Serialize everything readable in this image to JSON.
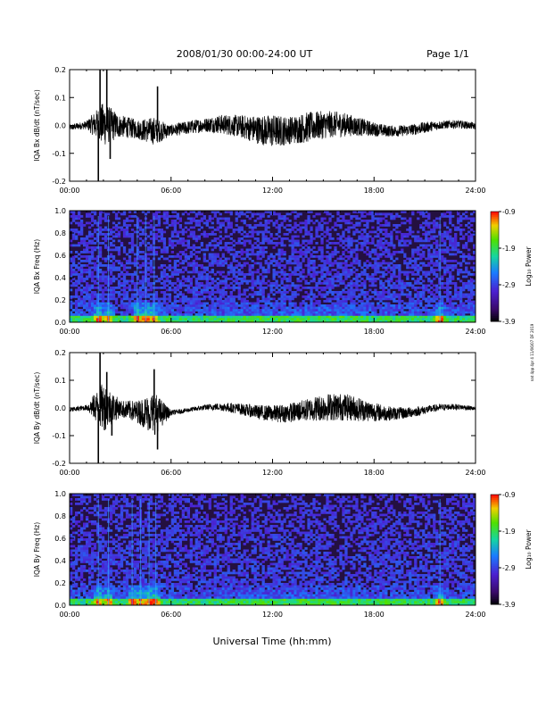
{
  "header": {
    "title": "2008/01/30  00:00-24:00 UT",
    "page": "Page 1/1"
  },
  "footer": {
    "xlabel": "Universal Time (hh:mm)",
    "side_note": "nat 4pp 4pr 4 11/06/07 DF 2019"
  },
  "chart_data": [
    {
      "type": "line",
      "ylabel": "IQA Bx dB/dt (nT/sec)",
      "x_ticks": [
        "00:00",
        "06:00",
        "12:00",
        "18:00",
        "24:00"
      ],
      "y_ticks": [
        "0.2",
        "0.1",
        "0.0",
        "-0.1",
        "-0.2"
      ],
      "xlim": [
        0,
        24
      ],
      "ylim": [
        -0.2,
        0.2
      ],
      "x_unit": "hours UT",
      "series_points": {
        "x": [
          0,
          1,
          1.7,
          1.8,
          2.2,
          2.4,
          3,
          4,
          5.2,
          6,
          8,
          10,
          11.5,
          12.5,
          14,
          16,
          18,
          20,
          22,
          24
        ],
        "y": [
          -0.01,
          -0.02,
          -0.2,
          0.2,
          0.2,
          -0.12,
          -0.03,
          -0.03,
          0.14,
          -0.01,
          0.0,
          -0.02,
          0.04,
          -0.03,
          0.02,
          -0.02,
          0.01,
          -0.01,
          0.01,
          -0.01
        ]
      },
      "envelope": {
        "x": [
          0,
          1,
          2,
          3,
          4,
          5,
          6,
          7,
          8,
          9,
          10,
          11,
          12,
          13,
          14,
          15,
          16,
          17,
          18,
          19,
          20,
          21,
          22,
          23,
          24
        ],
        "amp": [
          0.01,
          0.015,
          0.08,
          0.04,
          0.035,
          0.05,
          0.02,
          0.025,
          0.025,
          0.035,
          0.04,
          0.05,
          0.06,
          0.05,
          0.055,
          0.05,
          0.045,
          0.035,
          0.025,
          0.02,
          0.02,
          0.02,
          0.015,
          0.015,
          0.012
        ]
      }
    },
    {
      "type": "heatmap",
      "ylabel": "IQA Bx Freq (Hz)",
      "x_ticks": [
        "00:00",
        "06:00",
        "12:00",
        "18:00",
        "24:00"
      ],
      "y_ticks": [
        "1.0",
        "0.8",
        "0.6",
        "0.4",
        "0.2",
        "0.0"
      ],
      "xlim": [
        0,
        24
      ],
      "ylim": [
        0,
        1
      ],
      "colorbar": {
        "label": "Log₁₀ Power",
        "ticks": [
          "-0.9",
          "-1.9",
          "-2.9",
          "-3.9"
        ],
        "range": [
          -3.9,
          -0.9
        ]
      },
      "bursts_hours": [
        1.7,
        2.3,
        4.0,
        4.5,
        5.0,
        21.9
      ]
    },
    {
      "type": "line",
      "ylabel": "IQA By dB/dt (nT/sec)",
      "x_ticks": [
        "00:00",
        "06:00",
        "12:00",
        "18:00",
        "24:00"
      ],
      "y_ticks": [
        "0.2",
        "0.1",
        "0.0",
        "-0.1",
        "-0.2"
      ],
      "xlim": [
        0,
        24
      ],
      "ylim": [
        -0.2,
        0.2
      ],
      "x_unit": "hours UT",
      "series_points": {
        "x": [
          0,
          1,
          1.7,
          1.8,
          2.2,
          2.5,
          3,
          4,
          5,
          5.2,
          6,
          8,
          10,
          12,
          14,
          15.5,
          16,
          18,
          20,
          24
        ],
        "y": [
          0.0,
          0.0,
          -0.2,
          0.2,
          0.13,
          -0.1,
          0.04,
          0.05,
          0.14,
          -0.15,
          0.0,
          0.01,
          -0.02,
          0.03,
          -0.03,
          0.06,
          -0.06,
          0.03,
          -0.02,
          0.0
        ]
      },
      "envelope": {
        "x": [
          0,
          1,
          2,
          3,
          4,
          5,
          6,
          7,
          8,
          9,
          10,
          11,
          12,
          13,
          14,
          15,
          16,
          17,
          18,
          19,
          20,
          21,
          22,
          23,
          24
        ],
        "amp": [
          0.008,
          0.01,
          0.09,
          0.03,
          0.04,
          0.08,
          0.01,
          0.008,
          0.01,
          0.015,
          0.02,
          0.025,
          0.03,
          0.035,
          0.04,
          0.05,
          0.05,
          0.045,
          0.035,
          0.025,
          0.02,
          0.015,
          0.012,
          0.01,
          0.008
        ]
      }
    },
    {
      "type": "heatmap",
      "ylabel": "IQA By Freq (Hz)",
      "x_ticks": [
        "00:00",
        "06:00",
        "12:00",
        "18:00",
        "24:00"
      ],
      "y_ticks": [
        "1.0",
        "0.8",
        "0.6",
        "0.4",
        "0.2",
        "0.0"
      ],
      "xlim": [
        0,
        24
      ],
      "ylim": [
        0,
        1
      ],
      "colorbar": {
        "label": "Log₁₀ Power",
        "ticks": [
          "-0.9",
          "-1.9",
          "-2.9",
          "-3.9"
        ],
        "range": [
          -3.9,
          -0.9
        ]
      },
      "bursts_hours": [
        1.7,
        2.3,
        3.7,
        4.2,
        4.7,
        5.1,
        21.9
      ]
    }
  ]
}
